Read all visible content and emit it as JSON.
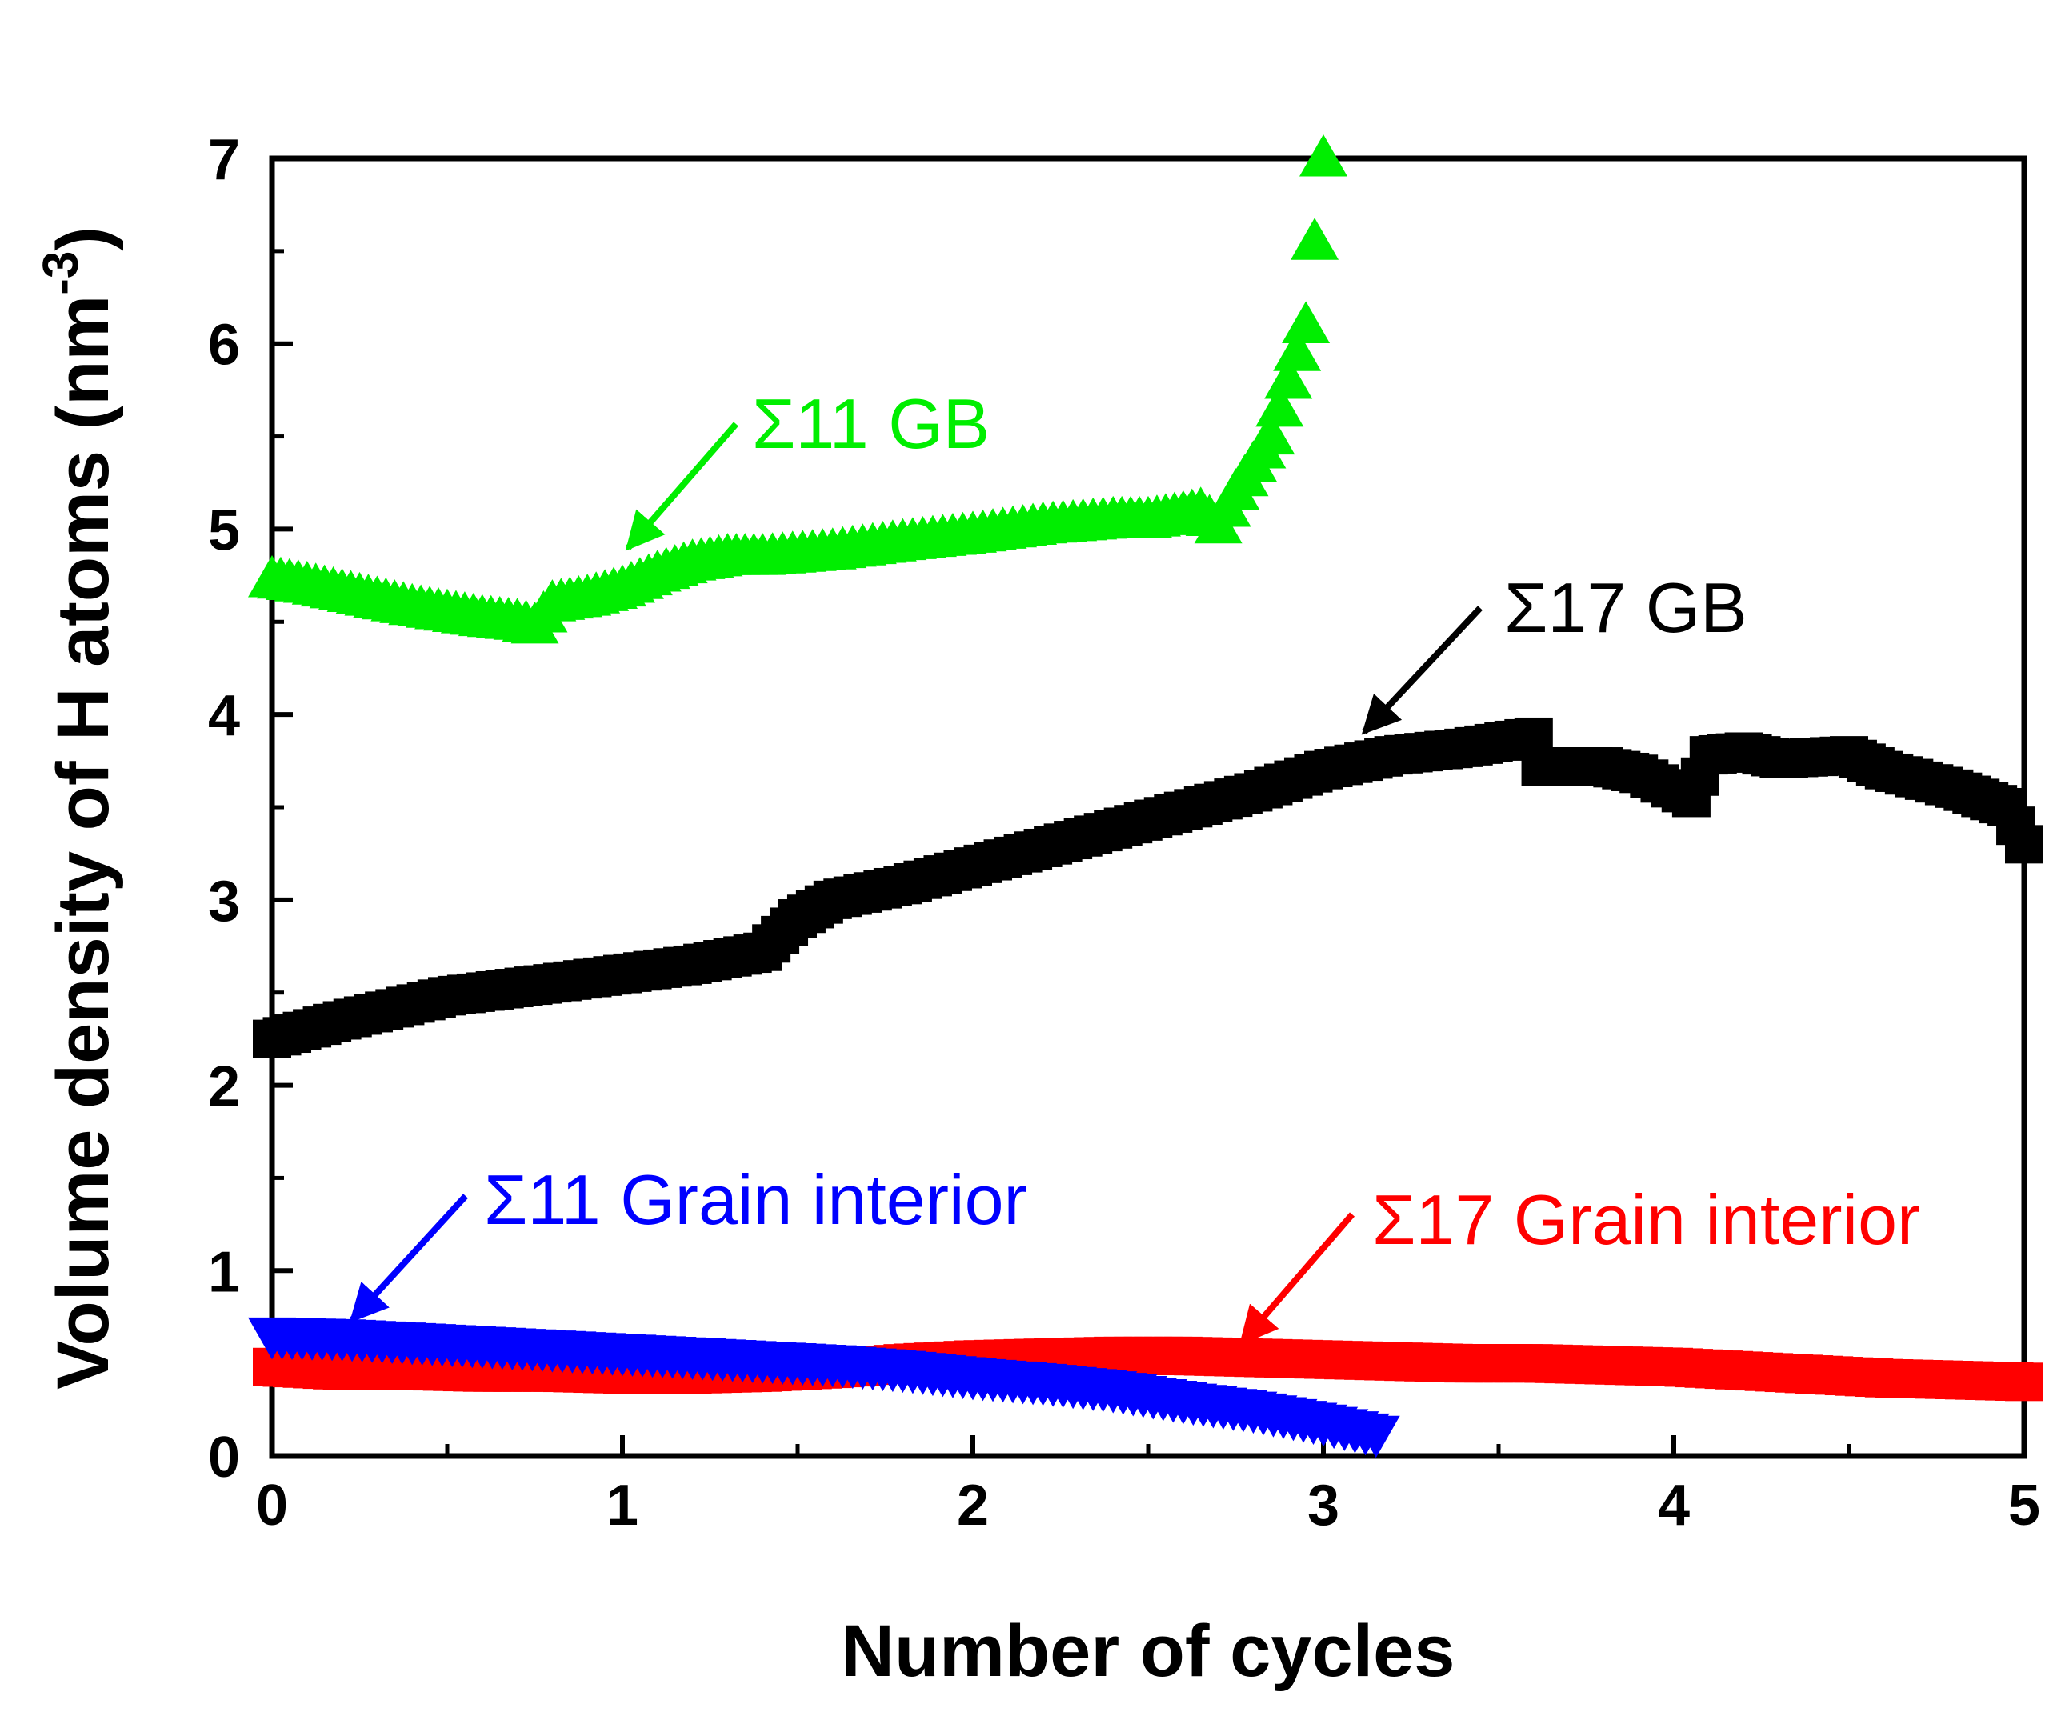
{
  "chart_data": {
    "type": "scatter",
    "xlabel": "Number of cycles",
    "ylabel": "Volume density of H atoms (nm",
    "ylabel_superscript": "-3",
    "ylabel_close": ")",
    "xlim": [
      0,
      5
    ],
    "ylim": [
      0,
      7
    ],
    "x_ticks": [
      "0",
      "1",
      "2",
      "3",
      "4",
      "5"
    ],
    "y_ticks": [
      "0",
      "1",
      "2",
      "3",
      "4",
      "5",
      "6",
      "7"
    ],
    "grid": false,
    "series": [
      {
        "name": "Σ17 GB",
        "color": "#000000",
        "marker": "square",
        "x": [
          0.0,
          0.2,
          0.5,
          0.8,
          1.0,
          1.2,
          1.4,
          1.5,
          1.6,
          1.8,
          2.0,
          2.2,
          2.4,
          2.6,
          2.8,
          3.0,
          3.2,
          3.4,
          3.6,
          3.62,
          3.8,
          3.9,
          4.05,
          4.1,
          4.2,
          4.3,
          4.5,
          4.6,
          4.8,
          4.95,
          5.0
        ],
        "y": [
          2.25,
          2.35,
          2.48,
          2.55,
          2.6,
          2.65,
          2.72,
          2.9,
          3.0,
          3.08,
          3.18,
          3.28,
          3.38,
          3.48,
          3.58,
          3.7,
          3.78,
          3.82,
          3.88,
          3.72,
          3.72,
          3.68,
          3.55,
          3.78,
          3.8,
          3.76,
          3.78,
          3.7,
          3.6,
          3.5,
          3.3
        ]
      },
      {
        "name": "Σ11 GB",
        "color": "#00ee00",
        "marker": "triangle",
        "x": [
          0.0,
          0.1,
          0.2,
          0.3,
          0.4,
          0.5,
          0.6,
          0.7,
          0.75,
          0.8,
          0.9,
          1.0,
          1.1,
          1.2,
          1.3,
          1.4,
          1.6,
          1.8,
          2.0,
          2.2,
          2.4,
          2.5,
          2.6,
          2.65,
          2.7,
          2.75,
          2.8,
          2.85,
          2.9,
          2.95,
          3.0
        ],
        "y": [
          4.73,
          4.7,
          4.66,
          4.62,
          4.58,
          4.55,
          4.52,
          4.5,
          4.48,
          4.6,
          4.63,
          4.68,
          4.76,
          4.82,
          4.85,
          4.85,
          4.88,
          4.93,
          4.97,
          5.02,
          5.05,
          5.05,
          5.08,
          5.1,
          5.02,
          5.2,
          5.35,
          5.5,
          5.8,
          6.1,
          7.0
        ]
      },
      {
        "name": "Σ11 Grain interior",
        "color": "#0000ff",
        "marker": "triangle-down",
        "x": [
          0.0,
          0.2,
          0.4,
          0.6,
          0.8,
          1.0,
          1.2,
          1.4,
          1.6,
          1.8,
          2.0,
          2.2,
          2.4,
          2.6,
          2.8,
          3.0,
          3.15
        ],
        "y": [
          0.65,
          0.64,
          0.62,
          0.6,
          0.58,
          0.56,
          0.54,
          0.52,
          0.5,
          0.47,
          0.43,
          0.4,
          0.36,
          0.3,
          0.25,
          0.18,
          0.12
        ]
      },
      {
        "name": "Σ17 Grain interior",
        "color": "#ff0000",
        "marker": "square",
        "x": [
          0.0,
          0.2,
          0.4,
          0.6,
          0.8,
          1.0,
          1.2,
          1.4,
          1.6,
          1.8,
          2.0,
          2.2,
          2.4,
          2.6,
          2.8,
          3.0,
          3.2,
          3.4,
          3.6,
          3.8,
          4.0,
          4.2,
          4.4,
          4.6,
          4.8,
          5.0
        ],
        "y": [
          0.48,
          0.46,
          0.46,
          0.45,
          0.45,
          0.44,
          0.44,
          0.45,
          0.47,
          0.5,
          0.52,
          0.53,
          0.54,
          0.54,
          0.53,
          0.52,
          0.51,
          0.5,
          0.5,
          0.49,
          0.48,
          0.46,
          0.44,
          0.42,
          0.41,
          0.4
        ]
      }
    ],
    "annotations": [
      {
        "text": "Σ11 GB",
        "color": "#00ee00",
        "target": [
          1.0,
          4.85
        ]
      },
      {
        "text": "Σ17 GB",
        "color": "#000000",
        "target": [
          3.1,
          3.9
        ]
      },
      {
        "text": "Σ11 Grain interior",
        "color": "#0000ff",
        "target": [
          0.22,
          0.72
        ]
      },
      {
        "text": "Σ17 Grain interior",
        "color": "#ff0000",
        "target": [
          2.75,
          0.58
        ]
      }
    ]
  }
}
